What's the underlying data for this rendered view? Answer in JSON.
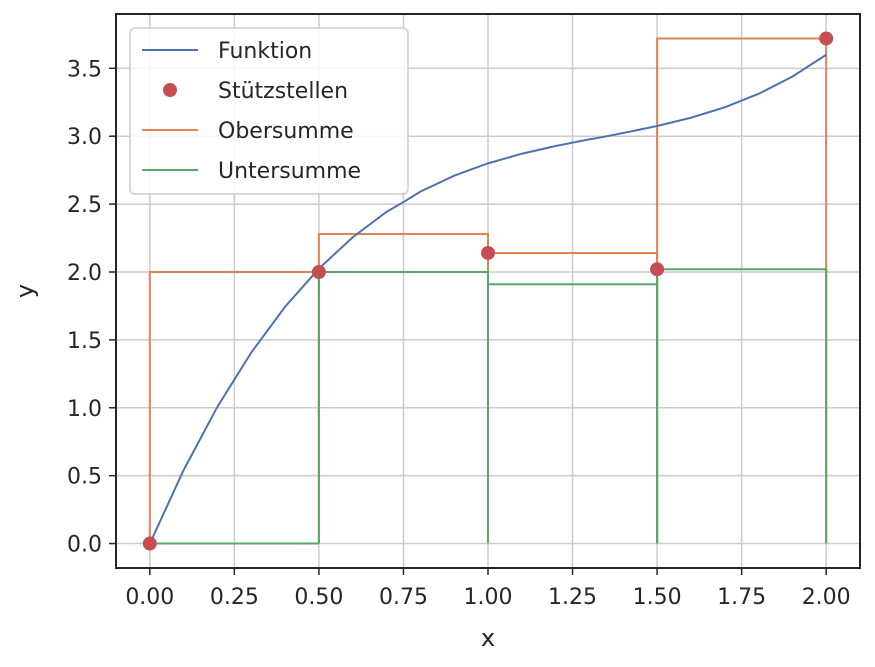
{
  "chart_data": {
    "type": "line",
    "title": "",
    "xlabel": "x",
    "ylabel": "y",
    "xlim": [
      -0.1,
      2.1
    ],
    "ylim": [
      -0.18,
      3.9
    ],
    "x_ticks": [
      0.0,
      0.25,
      0.5,
      0.75,
      1.0,
      1.25,
      1.5,
      1.75,
      2.0
    ],
    "x_tick_labels": [
      "0.00",
      "0.25",
      "0.50",
      "0.75",
      "1.00",
      "1.25",
      "1.50",
      "1.75",
      "2.00"
    ],
    "y_ticks": [
      0.0,
      0.5,
      1.0,
      1.5,
      2.0,
      2.5,
      3.0,
      3.5
    ],
    "y_tick_labels": [
      "0.0",
      "0.5",
      "1.0",
      "1.5",
      "2.0",
      "2.5",
      "3.0",
      "3.5"
    ],
    "grid": true,
    "legend_position": "top-left",
    "series": [
      {
        "name": "Funktion",
        "kind": "line",
        "color": "#4c72b0",
        "x": [
          0.0,
          0.1,
          0.2,
          0.3,
          0.4,
          0.5,
          0.6,
          0.7,
          0.75,
          0.8,
          0.9,
          1.0,
          1.1,
          1.2,
          1.3,
          1.333,
          1.4,
          1.5,
          1.6,
          1.7,
          1.8,
          1.9,
          2.0
        ],
        "y": [
          0.0,
          0.541,
          1.008,
          1.407,
          1.744,
          2.025,
          2.256,
          2.443,
          2.515,
          2.592,
          2.709,
          2.8,
          2.871,
          2.928,
          2.977,
          2.991,
          3.024,
          3.075,
          3.136,
          3.213,
          3.312,
          3.439,
          3.6
        ]
      },
      {
        "name": "Stützstellen",
        "kind": "markers",
        "color": "#c44e52",
        "x": [
          0.0,
          0.5,
          1.0,
          1.5,
          2.0
        ],
        "y": [
          0.0,
          2.0,
          2.14,
          2.02,
          3.72
        ]
      },
      {
        "name": "Obersumme",
        "kind": "rects",
        "color": "#dd8452",
        "x": [
          0.0,
          0.5,
          1.0,
          1.5
        ],
        "width": 0.5,
        "y": [
          2.0,
          2.28,
          2.14,
          3.72
        ]
      },
      {
        "name": "Untersumme",
        "kind": "rects",
        "color": "#55a868",
        "x": [
          0.0,
          0.5,
          1.0,
          1.5
        ],
        "width": 0.5,
        "y": [
          0.0,
          2.0,
          1.91,
          2.02
        ]
      }
    ]
  }
}
